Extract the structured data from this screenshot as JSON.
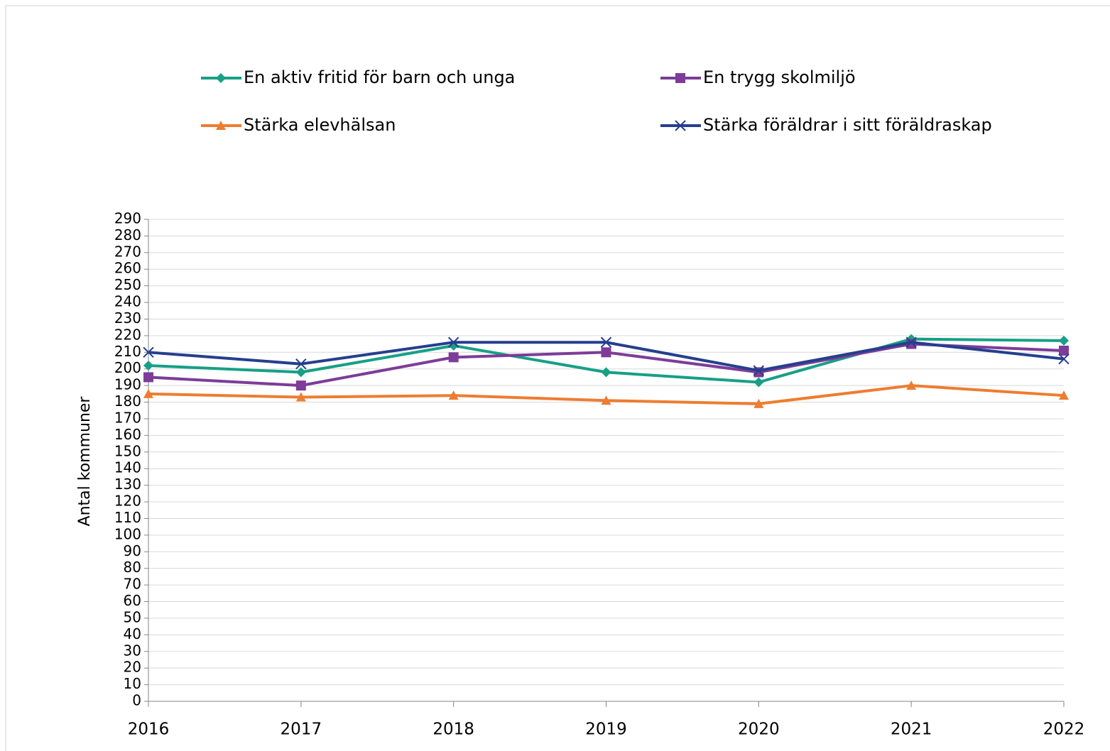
{
  "chart_data": {
    "type": "line",
    "y_label": "Antal kommuner",
    "x": [
      2016,
      2017,
      2018,
      2019,
      2020,
      2021,
      2022
    ],
    "xlim": [
      2016,
      2022
    ],
    "xticks": [
      2016,
      2017,
      2018,
      2019,
      2020,
      2021,
      2022
    ],
    "ylim": [
      0,
      290
    ],
    "yticks": [
      0,
      10,
      20,
      30,
      40,
      50,
      60,
      70,
      80,
      90,
      100,
      110,
      120,
      130,
      140,
      150,
      160,
      170,
      180,
      190,
      200,
      210,
      220,
      230,
      240,
      250,
      260,
      270,
      280,
      290
    ],
    "grid": true,
    "series": [
      {
        "name": "En aktiv fritid för barn och unga",
        "color": "#17a085",
        "marker": "diamond",
        "values": [
          202,
          198,
          214,
          198,
          192,
          218,
          217
        ]
      },
      {
        "name": "En trygg skolmiljö",
        "color": "#7d3c98",
        "marker": "square",
        "values": [
          195,
          190,
          207,
          210,
          198,
          215,
          211
        ]
      },
      {
        "name": "Stärka elevhälsan",
        "color": "#ed7d31",
        "marker": "triangle",
        "values": [
          185,
          183,
          184,
          181,
          179,
          190,
          184
        ]
      },
      {
        "name": "Stärka föräldrar i sitt föräldraskap",
        "color": "#253f8e",
        "marker": "x",
        "values": [
          210,
          203,
          216,
          216,
          199,
          216,
          206
        ]
      }
    ]
  }
}
